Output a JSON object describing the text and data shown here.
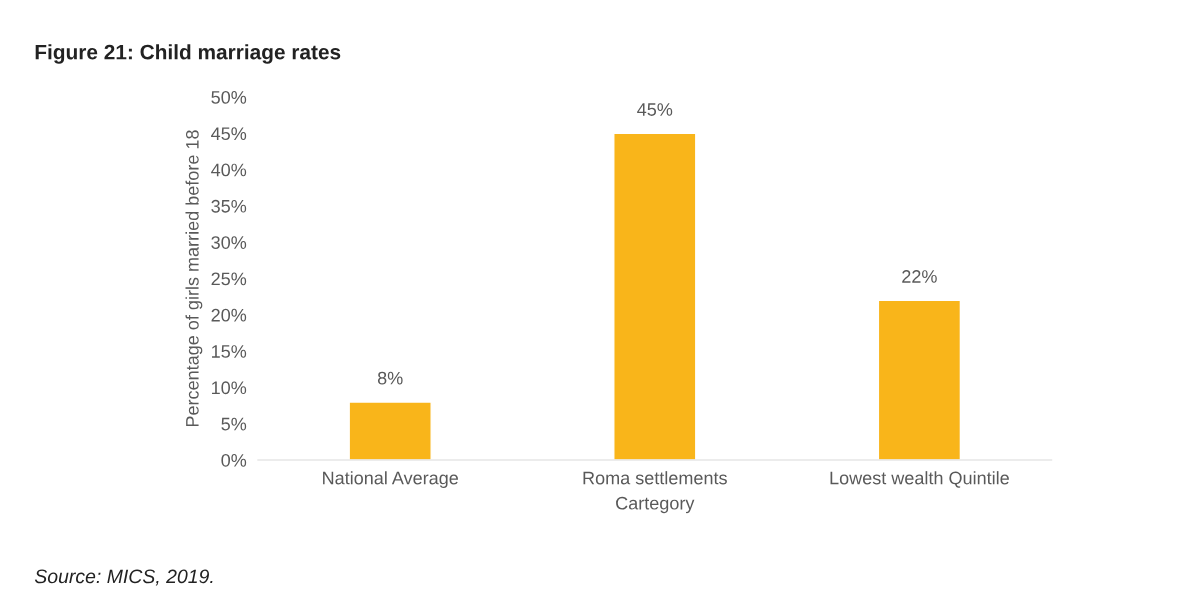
{
  "chart_data": {
    "type": "bar",
    "title": "Figure 21: Child marriage rates",
    "categories": [
      "National Average",
      "Roma settlements",
      "Lowest wealth Quintile"
    ],
    "values": [
      8,
      45,
      22
    ],
    "value_labels": [
      "8%",
      "45%",
      "22%"
    ],
    "color": "#f9b51a",
    "xlabel": "Cartegory",
    "ylabel": "Percentage of girls married before 18",
    "ylim": [
      0,
      50
    ],
    "yticks": [
      {
        "value": 0,
        "label": "0%"
      },
      {
        "value": 5,
        "label": "5%"
      },
      {
        "value": 10,
        "label": "10%"
      },
      {
        "value": 15,
        "label": "15%"
      },
      {
        "value": 20,
        "label": "20%"
      },
      {
        "value": 25,
        "label": "25%"
      },
      {
        "value": 30,
        "label": "30%"
      },
      {
        "value": 35,
        "label": "35%"
      },
      {
        "value": 40,
        "label": "40%"
      },
      {
        "value": 45,
        "label": "45%"
      },
      {
        "value": 50,
        "label": "50%"
      }
    ],
    "grid": false,
    "legend": false,
    "annotations": [
      "Source: MICS, 2019."
    ]
  }
}
